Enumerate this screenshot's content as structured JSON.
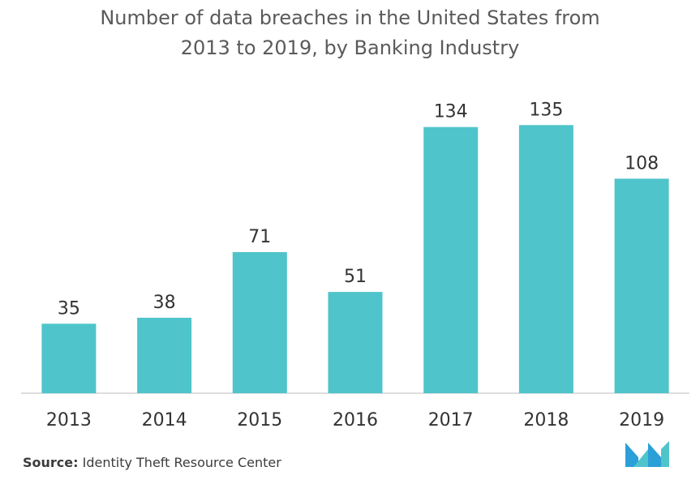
{
  "chart_data": {
    "type": "bar",
    "title_lines": [
      "Number of data breaches in the United States from",
      "2013 to 2019, by Banking Industry"
    ],
    "categories": [
      "2013",
      "2014",
      "2015",
      "2016",
      "2017",
      "2018",
      "2019"
    ],
    "values": [
      35,
      38,
      71,
      51,
      134,
      135,
      108
    ],
    "xlabel": "",
    "ylabel": "",
    "ylim": [
      0,
      150
    ],
    "grid": false,
    "legend": "none",
    "bar_color": "#4fc4cb"
  },
  "source": {
    "prefix": "Source:",
    "text": " Identity Theft Resource Center"
  },
  "logo": {
    "icon": "mordor-intelligence-logo-icon",
    "colors": [
      "#2a9fd8",
      "#4fc4cb"
    ]
  }
}
